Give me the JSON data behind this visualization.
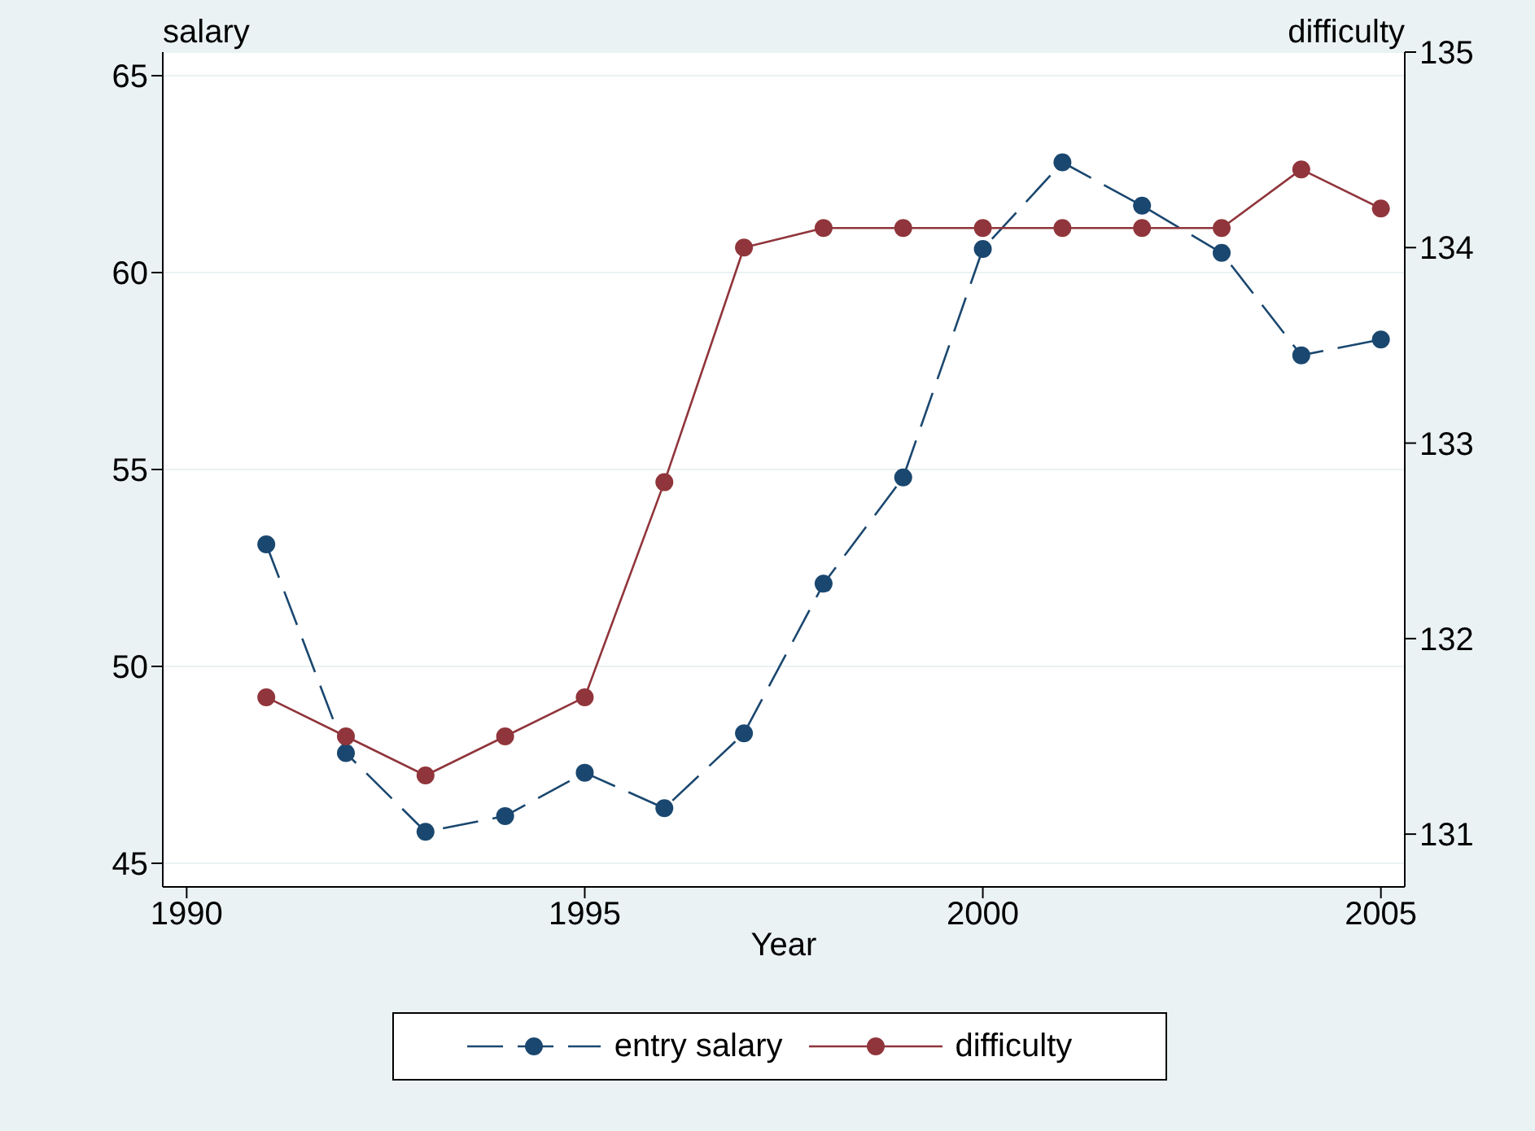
{
  "chart_data": {
    "type": "line",
    "xlabel": "Year",
    "ylabel": "salary",
    "y2label": "difficulty",
    "x": [
      1991,
      1992,
      1993,
      1994,
      1995,
      1996,
      1997,
      1998,
      1999,
      2000,
      2001,
      2002,
      2003,
      2004,
      2005
    ],
    "series": [
      {
        "name": "entry salary",
        "color": "#1a476f",
        "line_style": "dashed",
        "values": [
          53.1,
          47.8,
          45.8,
          46.2,
          47.3,
          46.4,
          48.3,
          52.1,
          54.8,
          60.6,
          62.8,
          61.7,
          60.5,
          57.9,
          58.3
        ]
      },
      {
        "name": "difficulty",
        "color": "#90353b",
        "line_style": "solid",
        "axis": "y2",
        "values": [
          131.7,
          131.5,
          131.3,
          131.5,
          131.7,
          132.8,
          134,
          134.1,
          134.1,
          134.1,
          134.1,
          134.1,
          134.1,
          134.4,
          134.2
        ]
      }
    ],
    "xlim": [
      1989.7,
      2005.3
    ],
    "xticks": [
      1990,
      1995,
      2000,
      2005
    ],
    "ylim": [
      44.4,
      65.6
    ],
    "yticks": [
      45,
      50,
      55,
      60,
      65
    ],
    "y2lim": [
      130.73,
      135
    ],
    "y2ticks": [
      131,
      132,
      133,
      134,
      135
    ],
    "grid": "y",
    "legend": "bottom",
    "marker": "circle"
  }
}
